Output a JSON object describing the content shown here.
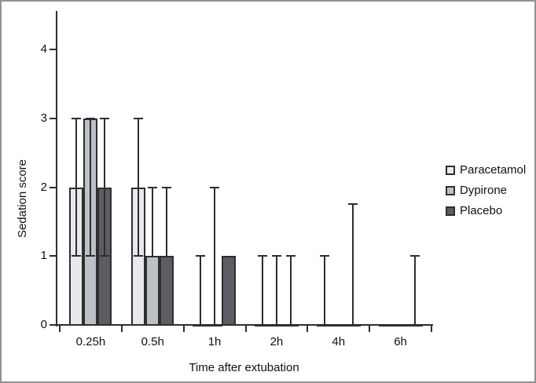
{
  "figure": {
    "background": "#ffffff",
    "border_color": "#929292"
  },
  "chart_data": {
    "type": "bar",
    "title": "",
    "xlabel": "Time after extubation",
    "ylabel": "Sedation score",
    "categories": [
      "0.25h",
      "0.5h",
      "1h",
      "2h",
      "4h",
      "6h"
    ],
    "y_ticks": [
      0,
      1,
      2,
      3,
      4
    ],
    "ylim": [
      0,
      4.5
    ],
    "grid": false,
    "legend_position": "right",
    "axis_color": "#2e2e2e",
    "series": [
      {
        "name": "Paracetamol",
        "color": "#e7e9ee",
        "bars": [
          {
            "v": 2,
            "lo": 1,
            "hi": 3
          },
          {
            "v": 2,
            "lo": 1,
            "hi": 3
          },
          {
            "v": 0,
            "hi": 1
          },
          {
            "v": 0,
            "hi": 1
          },
          {
            "v": 0,
            "hi": 1
          },
          {
            "v": 0
          }
        ]
      },
      {
        "name": "Dypirone",
        "color": "#bdc0c7",
        "bars": [
          {
            "v": 3,
            "lo": 1,
            "hi": 3
          },
          {
            "v": 1,
            "hi": 2
          },
          {
            "v": 0,
            "hi": 2
          },
          {
            "v": 0,
            "hi": 1
          },
          {
            "v": 0
          },
          {
            "v": 0
          }
        ]
      },
      {
        "name": "Placebo",
        "color": "#5b5d62",
        "bars": [
          {
            "v": 2,
            "lo": 1,
            "hi": 3
          },
          {
            "v": 1,
            "hi": 2
          },
          {
            "v": 1
          },
          {
            "v": 0,
            "hi": 1
          },
          {
            "v": 0,
            "hi": 1.75
          },
          {
            "v": 0,
            "hi": 1
          }
        ]
      }
    ]
  }
}
